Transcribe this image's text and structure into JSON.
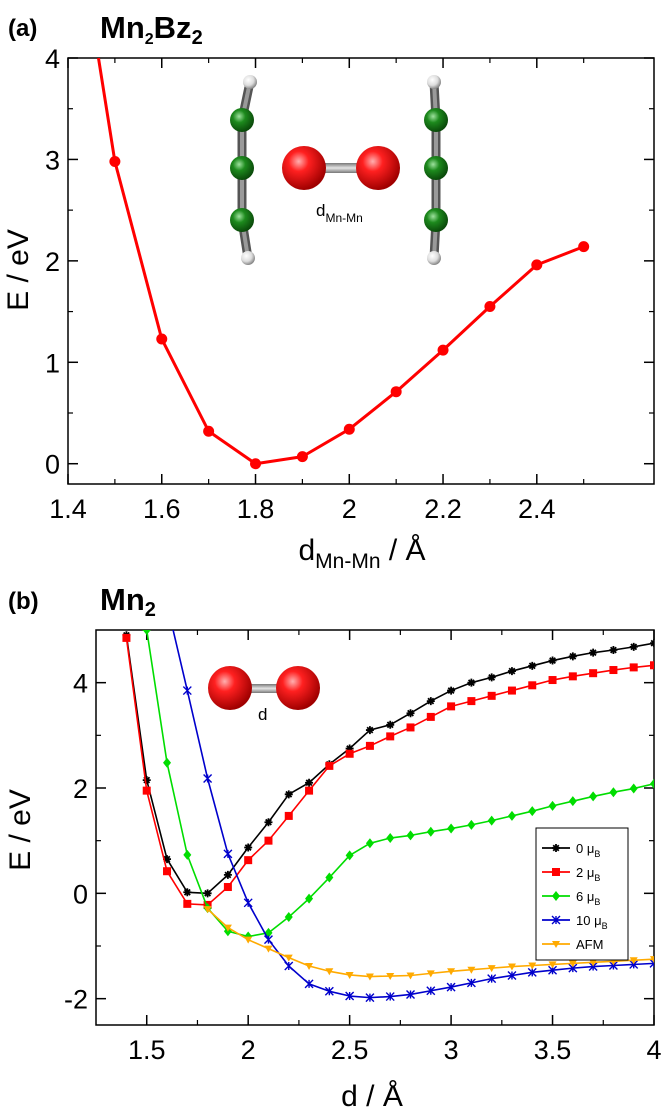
{
  "chart_data": [
    {
      "panel_label": "(a)",
      "title_main": "Mn",
      "title_sub1": "2",
      "title_mid": "Bz",
      "title_sub2": "2",
      "type": "line",
      "ylabel": "E / eV",
      "xlabel_main": "d",
      "xlabel_sub": "Mn-Mn",
      "xlabel_tail": " / Å",
      "xlim": [
        1.4,
        2.65
      ],
      "ylim": [
        -0.2,
        4
      ],
      "xticks": [
        1.4,
        1.6,
        1.8,
        2.0,
        2.2,
        2.4
      ],
      "xtick_labels": [
        "1.4",
        "1.6",
        "1.8",
        "2",
        "2.2",
        "2.4"
      ],
      "yticks": [
        0,
        1,
        2,
        3,
        4
      ],
      "ytick_labels": [
        "0",
        "1",
        "2",
        "3",
        "4"
      ],
      "inset_label_main": "d",
      "inset_label_sub": "Mn-Mn",
      "series": [
        {
          "name": "Mn2Bz2",
          "color": "#ff0000",
          "x": [
            1.5,
            1.6,
            1.7,
            1.8,
            1.9,
            2.0,
            2.1,
            2.2,
            2.3,
            2.4,
            2.5
          ],
          "values": [
            2.98,
            1.23,
            0.32,
            0.0,
            0.07,
            0.34,
            0.71,
            1.12,
            1.55,
            1.96,
            2.14
          ],
          "extra_start": [
            1.465,
            4.0
          ]
        }
      ]
    },
    {
      "panel_label": "(b)",
      "title_main": "Mn",
      "title_sub1": "2",
      "type": "line",
      "ylabel": "E / eV",
      "xlabel_main": "d / Å",
      "xlim": [
        1.25,
        4.0
      ],
      "ylim": [
        -2.5,
        5.0
      ],
      "xticks": [
        1.5,
        2.0,
        2.5,
        3.0,
        3.5,
        4.0
      ],
      "xtick_labels": [
        "1.5",
        "2",
        "2.5",
        "3",
        "3.5",
        "4"
      ],
      "yticks": [
        -2,
        0,
        2,
        4
      ],
      "ytick_labels": [
        "-2",
        "0",
        "2",
        "4"
      ],
      "inset_label": "d",
      "legend": [
        "0  μB",
        "2 μB",
        "6 μB",
        "10 μB",
        "AFM"
      ],
      "legend_parts": [
        {
          "main": "0  μ",
          "sub": "B"
        },
        {
          "main": "2 μ",
          "sub": "B"
        },
        {
          "main": "6 μ",
          "sub": "B"
        },
        {
          "main": "10 μ",
          "sub": "B"
        },
        {
          "main": "AFM",
          "sub": ""
        }
      ],
      "series": [
        {
          "name": "0 μB",
          "color": "#000000",
          "marker": "star",
          "x": [
            1.4,
            1.5,
            1.6,
            1.7,
            1.8,
            1.9,
            2.0,
            2.1,
            2.2,
            2.3,
            2.4,
            2.5,
            2.6,
            2.7,
            2.8,
            2.9,
            3.0,
            3.1,
            3.2,
            3.3,
            3.4,
            3.5,
            3.6,
            3.7,
            3.8,
            3.9,
            4.0
          ],
          "values": [
            4.9,
            2.15,
            0.65,
            0.02,
            0.0,
            0.35,
            0.87,
            1.35,
            1.88,
            2.1,
            2.45,
            2.75,
            3.1,
            3.2,
            3.42,
            3.65,
            3.85,
            4.0,
            4.1,
            4.22,
            4.32,
            4.42,
            4.5,
            4.57,
            4.62,
            4.68,
            4.75
          ]
        },
        {
          "name": "2 μB",
          "color": "#ff0000",
          "marker": "square",
          "x": [
            1.4,
            1.5,
            1.6,
            1.7,
            1.8,
            1.9,
            2.0,
            2.1,
            2.2,
            2.3,
            2.4,
            2.5,
            2.6,
            2.7,
            2.8,
            2.9,
            3.0,
            3.1,
            3.2,
            3.3,
            3.4,
            3.5,
            3.6,
            3.7,
            3.8,
            3.9,
            4.0
          ],
          "values": [
            4.85,
            1.95,
            0.42,
            -0.2,
            -0.22,
            0.12,
            0.63,
            1.0,
            1.47,
            1.95,
            2.42,
            2.65,
            2.8,
            2.98,
            3.15,
            3.35,
            3.55,
            3.65,
            3.75,
            3.85,
            3.95,
            4.05,
            4.12,
            4.18,
            4.24,
            4.29,
            4.33
          ]
        },
        {
          "name": "6 μB",
          "color": "#00dd00",
          "marker": "diamond",
          "x": [
            1.5,
            1.6,
            1.7,
            1.8,
            1.9,
            2.0,
            2.1,
            2.2,
            2.3,
            2.4,
            2.5,
            2.6,
            2.7,
            2.8,
            2.9,
            3.0,
            3.1,
            3.2,
            3.3,
            3.4,
            3.5,
            3.6,
            3.7,
            3.8,
            3.9,
            4.0
          ],
          "values": [
            5.0,
            2.48,
            0.73,
            -0.28,
            -0.72,
            -0.82,
            -0.75,
            -0.45,
            -0.1,
            0.3,
            0.72,
            0.95,
            1.05,
            1.1,
            1.17,
            1.23,
            1.3,
            1.38,
            1.47,
            1.56,
            1.66,
            1.75,
            1.84,
            1.92,
            1.99,
            2.08
          ],
          "extra_start": [
            1.48,
            5.0
          ]
        },
        {
          "name": "10 μB",
          "color": "#0000cc",
          "marker": "cross",
          "x": [
            1.7,
            1.8,
            1.9,
            2.0,
            2.1,
            2.2,
            2.3,
            2.4,
            2.5,
            2.6,
            2.7,
            2.8,
            2.9,
            3.0,
            3.1,
            3.2,
            3.3,
            3.4,
            3.5,
            3.6,
            3.7,
            3.8,
            3.9,
            4.0
          ],
          "values": [
            3.85,
            2.18,
            0.75,
            -0.18,
            -0.88,
            -1.38,
            -1.72,
            -1.86,
            -1.95,
            -1.98,
            -1.96,
            -1.92,
            -1.85,
            -1.78,
            -1.7,
            -1.62,
            -1.56,
            -1.5,
            -1.46,
            -1.42,
            -1.39,
            -1.37,
            -1.35,
            -1.33
          ],
          "extra_start": [
            1.63,
            5.0
          ]
        },
        {
          "name": "AFM",
          "color": "#ffaa00",
          "marker": "triangle",
          "x": [
            1.8,
            1.9,
            2.0,
            2.1,
            2.2,
            2.3,
            2.4,
            2.5,
            2.6,
            2.7,
            2.8,
            2.9,
            3.0,
            3.1,
            3.2,
            3.3,
            3.4,
            3.5,
            3.6,
            3.7,
            3.8,
            3.9,
            4.0
          ],
          "values": [
            -0.3,
            -0.65,
            -0.88,
            -1.05,
            -1.22,
            -1.38,
            -1.48,
            -1.55,
            -1.58,
            -1.57,
            -1.56,
            -1.52,
            -1.48,
            -1.45,
            -1.42,
            -1.39,
            -1.37,
            -1.35,
            -1.33,
            -1.31,
            -1.29,
            -1.27,
            -1.25
          ]
        }
      ]
    }
  ]
}
